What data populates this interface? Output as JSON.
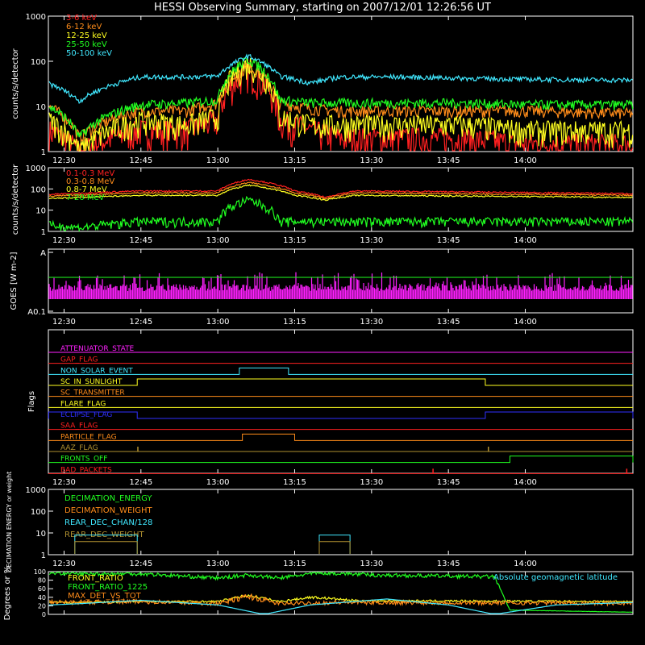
{
  "title": "HESSI Observing Summary, starting on 2007/12/01 12:26:56 UT",
  "time_axis": {
    "ticks": [
      "12:30",
      "12:45",
      "13:00",
      "13:15",
      "13:30",
      "13:45",
      "14:00"
    ]
  },
  "chart_data": [
    {
      "type": "line",
      "panel": "count-rates-low",
      "ylabel": "counts/s/detector",
      "yscale": "log",
      "ylim": [
        1,
        1000
      ],
      "ytick_labels": [
        "1",
        "10",
        "100",
        "1000"
      ],
      "legend_placement": "top-left",
      "series": [
        {
          "name": "3-6 keV",
          "color": "#ff2020",
          "x_hours": [
            12.45,
            12.55,
            12.75,
            12.9,
            13.0,
            13.1,
            13.2,
            13.3,
            13.4,
            13.6,
            13.8,
            14.0,
            14.35
          ],
          "y": [
            3,
            1,
            3,
            3,
            5,
            60,
            5,
            3,
            2,
            2,
            2,
            1.5,
            1.5
          ]
        },
        {
          "name": "6-12 keV",
          "color": "#ff8c1a",
          "x_hours": [
            12.45,
            12.55,
            12.75,
            12.9,
            13.0,
            13.1,
            13.2,
            13.3,
            13.4,
            13.6,
            13.8,
            14.0,
            14.35
          ],
          "y": [
            10,
            2,
            8,
            8,
            12,
            75,
            12,
            9,
            8,
            8,
            8,
            8,
            7
          ]
        },
        {
          "name": "12-25 keV",
          "color": "#ffff20",
          "x_hours": [
            12.45,
            12.55,
            12.75,
            12.9,
            13.0,
            13.1,
            13.2,
            13.3,
            13.4,
            13.6,
            13.8,
            14.0,
            14.35
          ],
          "y": [
            5,
            1,
            5,
            4,
            6,
            90,
            6,
            4,
            4,
            4,
            4,
            3,
            3
          ]
        },
        {
          "name": "25-50 keV",
          "color": "#20ff20",
          "x_hours": [
            12.45,
            12.55,
            12.75,
            12.9,
            13.0,
            13.1,
            13.2,
            13.3,
            13.4,
            13.6,
            13.8,
            14.0,
            14.35
          ],
          "y": [
            10,
            2,
            11,
            12,
            14,
            110,
            14,
            12,
            12,
            12,
            12,
            11,
            11
          ]
        },
        {
          "name": "50-100 keV",
          "color": "#40e8ff",
          "x_hours": [
            12.45,
            12.55,
            12.75,
            12.9,
            13.0,
            13.1,
            13.2,
            13.3,
            13.4,
            13.6,
            13.8,
            14.0,
            14.35
          ],
          "y": [
            32,
            13,
            45,
            45,
            47,
            130,
            47,
            33,
            45,
            45,
            42,
            40,
            38
          ]
        }
      ]
    },
    {
      "type": "line",
      "panel": "count-rates-high",
      "ylabel": "counts/s/detector",
      "yscale": "log",
      "ylim": [
        1,
        1000
      ],
      "ytick_labels": [
        "1",
        "10",
        "100",
        "1000"
      ],
      "legend_placement": "top-left",
      "series": [
        {
          "name": "0.1-0.3 MeV",
          "color": "#ff2020",
          "x_hours": [
            12.45,
            12.75,
            13.0,
            13.1,
            13.25,
            13.35,
            13.45,
            14.35
          ],
          "y": [
            55,
            80,
            80,
            280,
            80,
            40,
            80,
            60
          ]
        },
        {
          "name": "0.3-0.8 MeV",
          "color": "#ff8c1a",
          "x_hours": [
            12.45,
            12.75,
            13.0,
            13.1,
            13.25,
            13.35,
            13.45,
            14.35
          ],
          "y": [
            45,
            65,
            65,
            200,
            65,
            35,
            65,
            50
          ]
        },
        {
          "name": "0.8-7 MeV",
          "color": "#ffff20",
          "x_hours": [
            12.45,
            12.75,
            13.0,
            13.1,
            13.25,
            13.35,
            13.45,
            14.35
          ],
          "y": [
            35,
            50,
            50,
            150,
            50,
            30,
            50,
            40
          ]
        },
        {
          "name": "7-20 MeV",
          "color": "#20ff20",
          "x_hours": [
            12.45,
            12.55,
            12.75,
            13.0,
            13.1,
            13.2,
            14.35
          ],
          "y": [
            2,
            1.5,
            3,
            3,
            30,
            3,
            3
          ]
        }
      ]
    },
    {
      "type": "line",
      "panel": "goes",
      "ylabel": "GOES [W m-2]",
      "ytick_labels": [
        "A",
        "A0.1"
      ],
      "series": [
        {
          "name": "",
          "color": "#ff20ff",
          "x_hours": [
            12.45,
            14.35
          ],
          "y": [
            0.3,
            0.3
          ]
        },
        {
          "name": "",
          "color": "#20ff20",
          "x_hours": [
            12.45,
            14.35
          ],
          "y": [
            0.55,
            0.55
          ]
        }
      ]
    },
    {
      "type": "line",
      "panel": "flags",
      "ylabel": "Flags",
      "series": [
        {
          "name": "ATTENUATOR_STATE",
          "color": "#ff20ff"
        },
        {
          "name": "GAP_FLAG",
          "color": "#ff2020"
        },
        {
          "name": "NON_SOLAR_EVENT",
          "color": "#40e8ff",
          "high_intervals": [
            [
              13.07,
              13.23
            ]
          ]
        },
        {
          "name": "SC_IN_SUNLIGHT",
          "color": "#ffff20",
          "high_intervals": [
            [
              12.738,
              13.87
            ]
          ]
        },
        {
          "name": "SC_TRANSMITTER",
          "color": "#ff8c1a"
        },
        {
          "name": "FLARE_FLAG",
          "color": "#ffff20"
        },
        {
          "name": "ECLIPSE_FLAG",
          "color": "#3030ff",
          "high_intervals": [
            [
              12.45,
              12.738
            ],
            [
              13.87,
              14.35
            ]
          ]
        },
        {
          "name": "SAA_FLAG",
          "color": "#ff2020"
        },
        {
          "name": "PARTICLE_FLAG",
          "color": "#ff8c1a",
          "high_intervals": [
            [
              13.08,
              13.25
            ]
          ]
        },
        {
          "name": "AAZ_FLAG",
          "color": "#b09030",
          "spikes": [
            12.74,
            13.88
          ]
        },
        {
          "name": "FRONTS_OFF",
          "color": "#20ff20",
          "high_intervals": [
            [
              13.95,
              14.35
            ]
          ]
        },
        {
          "name": "BAD_PACKETS",
          "color": "#ff2020",
          "spikes": [
            13.7,
            14.33
          ]
        }
      ]
    },
    {
      "type": "line",
      "panel": "decimation",
      "ylabel": "DECIMATION ENERGY or weight",
      "yscale": "log",
      "ylim": [
        1,
        1000
      ],
      "ytick_labels": [
        "1",
        "10",
        "100",
        "1000"
      ],
      "series": [
        {
          "name": "DECIMATION_ENERGY",
          "color": "#20ff20"
        },
        {
          "name": "DECIMATION_WEIGHT",
          "color": "#ff8c1a"
        },
        {
          "name": "REAR_DEC_CHAN/128",
          "color": "#40e8ff",
          "intervals": [
            [
              12.535,
              12.738,
              8
            ],
            [
              13.33,
              13.43,
              8
            ]
          ]
        },
        {
          "name": "REAR_DEC_WEIGHT",
          "color": "#b09030",
          "intervals": [
            [
              12.535,
              12.738,
              4
            ],
            [
              13.33,
              13.43,
              4
            ]
          ]
        }
      ]
    },
    {
      "type": "line",
      "panel": "ratios",
      "ylabel": "Degrees or %",
      "ylim": [
        0,
        100
      ],
      "ytick_labels": [
        "0",
        "20",
        "40",
        "60",
        "80",
        "100"
      ],
      "series": [
        {
          "name": "FRONT_RATIO",
          "color": "#ffff20",
          "x_hours": [
            12.45,
            12.55,
            12.75,
            13.0,
            13.1,
            13.2,
            13.3,
            13.35,
            13.45,
            14.35
          ],
          "y": [
            28,
            28,
            30,
            30,
            45,
            30,
            40,
            38,
            32,
            30
          ]
        },
        {
          "name": "FRONT_RATIO_1225",
          "color": "#20ff20",
          "x_hours": [
            12.45,
            12.55,
            12.75,
            13.0,
            13.1,
            13.2,
            13.33,
            13.43,
            13.5,
            13.9,
            13.95,
            14.35
          ],
          "y": [
            98,
            95,
            95,
            85,
            92,
            85,
            98,
            95,
            92,
            88,
            10,
            5
          ]
        },
        {
          "name": "MAX_DET_VS_TOT",
          "color": "#ff8c1a",
          "x_hours": [
            12.45,
            12.75,
            13.0,
            13.1,
            13.2,
            13.4,
            14.35
          ],
          "y": [
            28,
            30,
            25,
            42,
            25,
            28,
            26
          ]
        },
        {
          "name": "Absolute geomagnetic latitude",
          "color": "#40e8ff",
          "x_hours": [
            12.45,
            12.55,
            12.75,
            13.0,
            13.15,
            13.3,
            13.55,
            13.75,
            13.9,
            14.1,
            14.35
          ],
          "y": [
            22,
            25,
            33,
            22,
            0,
            22,
            36,
            22,
            0,
            22,
            28
          ]
        }
      ]
    }
  ]
}
